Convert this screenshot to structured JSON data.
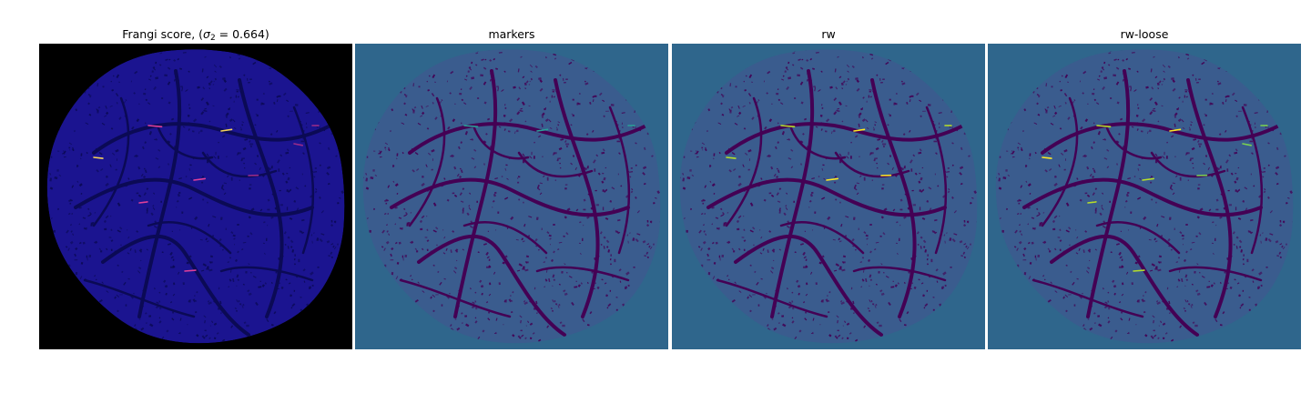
{
  "panels": [
    {
      "key": "frangi",
      "title_prefix": "Frangi score, (",
      "title_sigma": "σ",
      "title_sub": "2",
      "title_suffix": " = 0.664)",
      "background": "#000000",
      "blob_fill": "#1b1490",
      "vessel_color": "#0b0a55",
      "highlight_colors": [
        "#e0409a",
        "#f5d25a",
        "#9b2c8a"
      ]
    },
    {
      "key": "markers",
      "title": "markers",
      "background": "#2f668c",
      "blob_fill": "#3a5c8e",
      "vessel_color": "#440154",
      "highlight_colors": [
        "#2aa198"
      ]
    },
    {
      "key": "rw",
      "title": "rw",
      "background": "#2f668c",
      "blob_fill": "#3a5c8e",
      "vessel_color": "#440154",
      "highlight_colors": [
        "#b5de2b",
        "#fde725"
      ]
    },
    {
      "key": "rw-loose",
      "title": "rw-loose",
      "background": "#2f668c",
      "blob_fill": "#3a5c8e",
      "vessel_color": "#440154",
      "highlight_colors": [
        "#b5de2b",
        "#fde725",
        "#7ad151"
      ]
    }
  ]
}
